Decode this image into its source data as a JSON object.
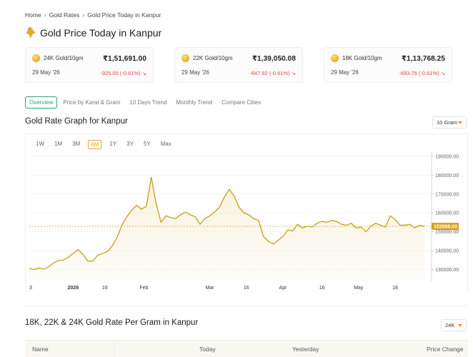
{
  "breadcrumb": {
    "home": "Home",
    "section": "Gold Rates",
    "current": "Gold Price Today in Kanpur"
  },
  "page_title": "Gold Price Today in Kanpur",
  "cards": [
    {
      "title": "24K Gold/10gm",
      "price": "₹1,51,691.00",
      "date": "29 May '26",
      "change": "-925.00 (-0.61%)"
    },
    {
      "title": "22K Gold/10gm",
      "price": "₹1,39,050.08",
      "date": "29 May '26",
      "change": "-847.92 (-0.61%)"
    },
    {
      "title": "18K Gold/10gm",
      "price": "₹1,13,768.25",
      "date": "29 May '26",
      "change": "-693.75 (-0.61%)"
    }
  ],
  "tabs": [
    "Overview",
    "Price by Karat & Gram",
    "10 Days Trend",
    "Monthly Trend",
    "Compare Cities"
  ],
  "graph": {
    "title": "Gold Rate Graph for Kanpur",
    "unit_select": "10 Gram",
    "ranges": [
      "1W",
      "1M",
      "3M",
      "6M",
      "1Y",
      "3Y",
      "5Y",
      "Max"
    ],
    "active_range": "6M"
  },
  "table": {
    "title": "18K, 22K & 24K Gold Rate Per Gram in Kanpur",
    "karat_select": "24K",
    "columns": [
      "Name",
      "Today",
      "Yesterday",
      "Price Change"
    ]
  },
  "colors": {
    "accent_green": "#2ba36f",
    "gold_line": "#c6960a",
    "negative": "#e0473b",
    "range_active": "#e7a432"
  },
  "chart_data": {
    "type": "area",
    "yticks": [
      130000,
      140000,
      150000,
      160000,
      170000,
      180000,
      190000
    ],
    "ytick_labels": [
      "130000.00",
      "140000.00",
      "150000.00",
      "160000.00",
      "170000.00",
      "180000.00",
      "190000.00"
    ],
    "ylim": [
      124500,
      193000
    ],
    "xtick_labels": [
      "3",
      "2026",
      "16",
      "Feb",
      "Mar",
      "16",
      "Apr",
      "16",
      "May",
      "18"
    ],
    "xtick_days": [
      0,
      18,
      31,
      47,
      74,
      89,
      104,
      120,
      135,
      150
    ],
    "current_value_label": "152888.00",
    "current_value": 152888,
    "x_days": [
      0,
      2,
      4,
      6,
      8,
      10,
      12,
      14,
      16,
      18,
      20,
      22,
      24,
      26,
      28,
      30,
      32,
      34,
      36,
      38,
      40,
      42,
      44,
      46,
      48,
      50,
      52,
      54,
      56,
      58,
      60,
      62,
      64,
      66,
      68,
      70,
      72,
      74,
      76,
      78,
      80,
      82,
      84,
      86,
      88,
      90,
      92,
      94,
      96,
      98,
      100,
      102,
      104,
      106,
      108,
      110,
      112,
      114,
      116,
      118,
      120,
      122,
      124,
      126,
      128,
      130,
      132,
      134,
      136,
      138,
      140,
      142,
      144,
      146,
      148,
      150,
      152,
      154,
      156,
      158,
      160,
      162
    ],
    "values": [
      130500,
      130000,
      130800,
      130200,
      131500,
      133500,
      134800,
      135000,
      136500,
      138500,
      140500,
      138000,
      134500,
      134500,
      137500,
      138500,
      139500,
      142500,
      147000,
      153500,
      158000,
      161500,
      164000,
      162000,
      163500,
      179000,
      165000,
      155000,
      158500,
      157500,
      157000,
      159000,
      160500,
      159000,
      158000,
      154000,
      157000,
      158500,
      160500,
      163000,
      168500,
      172500,
      169000,
      163000,
      160000,
      159000,
      157000,
      156000,
      147500,
      145000,
      143500,
      145500,
      147500,
      151000,
      150500,
      154000,
      152000,
      153000,
      152500,
      154500,
      155500,
      155000,
      156000,
      155500,
      154000,
      153500,
      154500,
      152000,
      152500,
      150000,
      153000,
      154500,
      153500,
      152500,
      158500,
      156500,
      153500,
      153500,
      154000,
      152000,
      153500,
      152888
    ]
  }
}
